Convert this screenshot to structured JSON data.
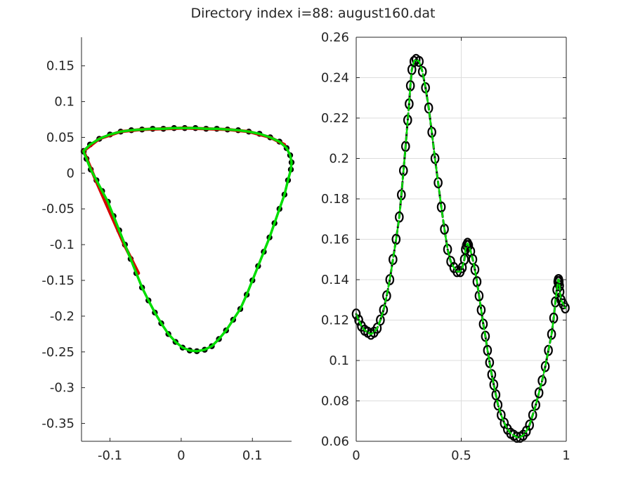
{
  "title": "Directory index i=88: august160.dat",
  "colors": {
    "axis": "#262626",
    "grid": "#dcdcdc",
    "markers": "#000000",
    "fit": "#00dd00",
    "reference": "#d40000"
  },
  "chart_data": [
    {
      "type": "line",
      "subplot": "left",
      "xlim": [
        -0.14,
        0.155
      ],
      "ylim": [
        -0.375,
        0.19
      ],
      "xticks": [
        -0.1,
        0,
        0.1
      ],
      "xtick_labels": [
        "-0.1",
        "0",
        "0.1"
      ],
      "yticks": [
        0.15,
        0.1,
        0.05,
        0,
        -0.05,
        -0.1,
        -0.15,
        -0.2,
        -0.25,
        -0.3,
        -0.35
      ],
      "ytick_labels": [
        "0.15",
        "0.1",
        "0.05",
        "0",
        "-0.05",
        "-0.1",
        "-0.15",
        "-0.2",
        "-0.25",
        "-0.3",
        "-0.35"
      ],
      "grid": false,
      "series": [
        {
          "style": "filled black circles",
          "x": [
            -0.137,
            -0.128,
            -0.115,
            -0.1,
            -0.085,
            -0.07,
            -0.055,
            -0.04,
            -0.025,
            -0.01,
            0.005,
            0.02,
            0.035,
            0.05,
            0.065,
            0.08,
            0.095,
            0.11,
            0.125,
            0.138,
            0.148,
            0.153,
            0.155,
            0.154,
            0.15,
            0.145,
            0.138,
            0.131,
            0.124,
            0.116,
            0.108,
            0.1,
            0.092,
            0.083,
            0.073,
            0.063,
            0.053,
            0.043,
            0.033,
            0.022,
            0.012,
            0.002,
            -0.008,
            -0.018,
            -0.028,
            -0.037,
            -0.046,
            -0.055,
            -0.063,
            -0.071,
            -0.079,
            -0.087,
            -0.095,
            -0.103,
            -0.111,
            -0.119,
            -0.127,
            -0.133,
            -0.137
          ],
          "y": [
            0.031,
            0.04,
            0.048,
            0.054,
            0.058,
            0.06,
            0.061,
            0.062,
            0.062,
            0.063,
            0.063,
            0.063,
            0.062,
            0.062,
            0.061,
            0.06,
            0.058,
            0.055,
            0.05,
            0.044,
            0.035,
            0.025,
            0.015,
            0.005,
            -0.01,
            -0.03,
            -0.05,
            -0.07,
            -0.09,
            -0.11,
            -0.13,
            -0.15,
            -0.17,
            -0.19,
            -0.205,
            -0.22,
            -0.232,
            -0.242,
            -0.247,
            -0.249,
            -0.248,
            -0.244,
            -0.236,
            -0.225,
            -0.21,
            -0.195,
            -0.178,
            -0.16,
            -0.14,
            -0.12,
            -0.1,
            -0.08,
            -0.06,
            -0.04,
            -0.025,
            -0.01,
            0.005,
            0.02,
            0.03
          ]
        },
        {
          "style": "red line",
          "x": [
            -0.137,
            -0.115,
            -0.085,
            -0.055,
            -0.025,
            0.005,
            0.035,
            0.065,
            0.095,
            0.125,
            0.145
          ],
          "y": [
            0.031,
            0.048,
            0.058,
            0.061,
            0.062,
            0.063,
            0.062,
            0.061,
            0.058,
            0.05,
            0.04
          ]
        },
        {
          "style": "red line",
          "x": [
            -0.137,
            -0.12,
            -0.1,
            -0.08,
            -0.06
          ],
          "y": [
            0.031,
            -0.01,
            -0.055,
            -0.1,
            -0.14
          ]
        },
        {
          "style": "green line",
          "x": [
            -0.137,
            -0.128,
            -0.115,
            -0.1,
            -0.085,
            -0.07,
            -0.055,
            -0.04,
            -0.025,
            -0.01,
            0.005,
            0.02,
            0.035,
            0.05,
            0.065,
            0.08,
            0.095,
            0.11,
            0.125,
            0.138,
            0.148,
            0.153,
            0.155,
            0.154,
            0.15,
            0.145,
            0.138,
            0.131,
            0.124,
            0.116,
            0.108,
            0.1,
            0.092,
            0.083,
            0.073,
            0.063,
            0.053,
            0.043,
            0.033,
            0.022,
            0.012,
            0.002,
            -0.008,
            -0.018,
            -0.028,
            -0.037,
            -0.046,
            -0.055,
            -0.063,
            -0.071,
            -0.079,
            -0.087,
            -0.095,
            -0.103,
            -0.111,
            -0.119,
            -0.127,
            -0.133,
            -0.137
          ],
          "y": [
            0.031,
            0.04,
            0.048,
            0.054,
            0.058,
            0.06,
            0.061,
            0.062,
            0.062,
            0.063,
            0.063,
            0.063,
            0.062,
            0.062,
            0.061,
            0.06,
            0.058,
            0.055,
            0.05,
            0.044,
            0.035,
            0.025,
            0.015,
            0.005,
            -0.01,
            -0.03,
            -0.05,
            -0.07,
            -0.09,
            -0.11,
            -0.13,
            -0.15,
            -0.17,
            -0.19,
            -0.205,
            -0.22,
            -0.232,
            -0.242,
            -0.247,
            -0.249,
            -0.248,
            -0.244,
            -0.236,
            -0.225,
            -0.21,
            -0.195,
            -0.178,
            -0.16,
            -0.14,
            -0.12,
            -0.1,
            -0.08,
            -0.06,
            -0.04,
            -0.025,
            -0.01,
            0.005,
            0.02,
            0.03
          ]
        }
      ]
    },
    {
      "type": "line",
      "subplot": "right",
      "xlim": [
        0,
        1
      ],
      "ylim": [
        0.06,
        0.26
      ],
      "xticks": [
        0,
        0.5,
        1
      ],
      "xtick_labels": [
        "0",
        "0.5",
        "1"
      ],
      "yticks": [
        0.26,
        0.24,
        0.22,
        0.2,
        0.18,
        0.16,
        0.14,
        0.12,
        0.1,
        0.08,
        0.06
      ],
      "ytick_labels": [
        "0.26",
        "0.24",
        "0.22",
        "0.2",
        "0.18",
        "0.16",
        "0.14",
        "0.12",
        "0.1",
        "0.08",
        "0.06"
      ],
      "grid": true,
      "series": [
        {
          "style": "open black circles",
          "x": [
            0,
            0.012,
            0.025,
            0.04,
            0.055,
            0.07,
            0.085,
            0.1,
            0.115,
            0.13,
            0.145,
            0.16,
            0.175,
            0.19,
            0.205,
            0.215,
            0.225,
            0.235,
            0.245,
            0.252,
            0.258,
            0.265,
            0.275,
            0.285,
            0.3,
            0.315,
            0.33,
            0.345,
            0.36,
            0.375,
            0.39,
            0.405,
            0.42,
            0.435,
            0.45,
            0.465,
            0.48,
            0.495,
            0.505,
            0.515,
            0.52,
            0.525,
            0.53,
            0.535,
            0.545,
            0.555,
            0.565,
            0.575,
            0.585,
            0.595,
            0.605,
            0.615,
            0.625,
            0.635,
            0.645,
            0.655,
            0.665,
            0.675,
            0.69,
            0.705,
            0.72,
            0.735,
            0.75,
            0.765,
            0.78,
            0.795,
            0.81,
            0.825,
            0.84,
            0.855,
            0.87,
            0.885,
            0.9,
            0.915,
            0.93,
            0.94,
            0.948,
            0.955,
            0.96,
            0.962,
            0.964,
            0.966,
            0.968,
            0.97,
            0.975,
            0.985,
            0.995
          ],
          "y": [
            0.123,
            0.12,
            0.117,
            0.115,
            0.114,
            0.113,
            0.114,
            0.116,
            0.12,
            0.125,
            0.132,
            0.14,
            0.15,
            0.16,
            0.171,
            0.182,
            0.194,
            0.206,
            0.219,
            0.227,
            0.236,
            0.244,
            0.248,
            0.249,
            0.248,
            0.243,
            0.235,
            0.225,
            0.213,
            0.2,
            0.188,
            0.176,
            0.165,
            0.155,
            0.149,
            0.146,
            0.144,
            0.144,
            0.146,
            0.15,
            0.155,
            0.157,
            0.158,
            0.157,
            0.154,
            0.15,
            0.145,
            0.139,
            0.132,
            0.125,
            0.118,
            0.112,
            0.105,
            0.099,
            0.093,
            0.088,
            0.083,
            0.078,
            0.073,
            0.069,
            0.066,
            0.064,
            0.063,
            0.062,
            0.062,
            0.063,
            0.065,
            0.068,
            0.073,
            0.078,
            0.084,
            0.09,
            0.097,
            0.105,
            0.113,
            0.121,
            0.129,
            0.135,
            0.139,
            0.14,
            0.14,
            0.139,
            0.137,
            0.134,
            0.13,
            0.128,
            0.126
          ]
        },
        {
          "style": "black dashed line",
          "x": [
            0,
            0.012,
            0.025,
            0.04,
            0.055,
            0.07,
            0.085,
            0.1,
            0.115,
            0.13,
            0.145,
            0.16,
            0.175,
            0.19,
            0.205,
            0.215,
            0.225,
            0.235,
            0.245,
            0.252,
            0.258,
            0.265,
            0.275,
            0.285,
            0.3,
            0.315,
            0.33,
            0.345,
            0.36,
            0.375,
            0.39,
            0.405,
            0.42,
            0.435,
            0.45,
            0.465,
            0.48,
            0.495,
            0.505,
            0.515,
            0.52,
            0.525,
            0.53,
            0.535,
            0.545,
            0.555,
            0.565,
            0.575,
            0.585,
            0.595,
            0.605,
            0.615,
            0.625,
            0.635,
            0.645,
            0.655,
            0.665,
            0.675,
            0.69,
            0.705,
            0.72,
            0.735,
            0.75,
            0.765,
            0.78,
            0.795,
            0.81,
            0.825,
            0.84,
            0.855,
            0.87,
            0.885,
            0.9,
            0.915,
            0.93,
            0.94,
            0.948,
            0.955,
            0.96,
            0.962,
            0.964,
            0.966,
            0.968,
            0.97,
            0.975,
            0.985,
            0.995
          ],
          "y": [
            0.123,
            0.12,
            0.117,
            0.115,
            0.114,
            0.113,
            0.114,
            0.116,
            0.12,
            0.125,
            0.132,
            0.14,
            0.15,
            0.16,
            0.171,
            0.182,
            0.194,
            0.206,
            0.219,
            0.227,
            0.236,
            0.244,
            0.248,
            0.249,
            0.248,
            0.243,
            0.235,
            0.225,
            0.213,
            0.2,
            0.188,
            0.176,
            0.165,
            0.155,
            0.149,
            0.146,
            0.144,
            0.144,
            0.146,
            0.15,
            0.155,
            0.157,
            0.158,
            0.157,
            0.154,
            0.15,
            0.145,
            0.139,
            0.132,
            0.125,
            0.118,
            0.112,
            0.105,
            0.099,
            0.093,
            0.088,
            0.083,
            0.078,
            0.073,
            0.069,
            0.066,
            0.064,
            0.063,
            0.062,
            0.062,
            0.063,
            0.065,
            0.068,
            0.073,
            0.078,
            0.084,
            0.09,
            0.097,
            0.105,
            0.113,
            0.121,
            0.129,
            0.135,
            0.139,
            0.14,
            0.14,
            0.139,
            0.137,
            0.134,
            0.13,
            0.128,
            0.126
          ]
        },
        {
          "style": "green dashed line",
          "x": [
            0,
            0.012,
            0.025,
            0.04,
            0.055,
            0.07,
            0.085,
            0.1,
            0.115,
            0.13,
            0.145,
            0.16,
            0.175,
            0.19,
            0.205,
            0.215,
            0.225,
            0.235,
            0.245,
            0.252,
            0.258,
            0.265,
            0.275,
            0.285,
            0.3,
            0.315,
            0.33,
            0.345,
            0.36,
            0.375,
            0.39,
            0.405,
            0.42,
            0.435,
            0.45,
            0.465,
            0.48,
            0.495,
            0.505,
            0.515,
            0.52,
            0.525,
            0.53,
            0.535,
            0.545,
            0.555,
            0.565,
            0.575,
            0.585,
            0.595,
            0.605,
            0.615,
            0.625,
            0.635,
            0.645,
            0.655,
            0.665,
            0.675,
            0.69,
            0.705,
            0.72,
            0.735,
            0.75,
            0.765,
            0.78,
            0.795,
            0.81,
            0.825,
            0.84,
            0.855,
            0.87,
            0.885,
            0.9,
            0.915,
            0.93,
            0.94,
            0.948,
            0.955,
            0.96,
            0.962,
            0.964,
            0.966,
            0.968,
            0.97,
            0.975,
            0.985,
            0.995
          ],
          "y": [
            0.123,
            0.12,
            0.117,
            0.115,
            0.114,
            0.113,
            0.114,
            0.116,
            0.12,
            0.125,
            0.132,
            0.14,
            0.15,
            0.16,
            0.171,
            0.182,
            0.194,
            0.206,
            0.219,
            0.227,
            0.236,
            0.244,
            0.248,
            0.249,
            0.248,
            0.243,
            0.235,
            0.225,
            0.213,
            0.2,
            0.188,
            0.176,
            0.165,
            0.155,
            0.149,
            0.146,
            0.144,
            0.144,
            0.146,
            0.15,
            0.155,
            0.157,
            0.158,
            0.157,
            0.154,
            0.15,
            0.145,
            0.139,
            0.132,
            0.125,
            0.118,
            0.112,
            0.105,
            0.099,
            0.093,
            0.088,
            0.083,
            0.078,
            0.073,
            0.069,
            0.066,
            0.064,
            0.063,
            0.062,
            0.062,
            0.063,
            0.065,
            0.068,
            0.073,
            0.078,
            0.084,
            0.09,
            0.097,
            0.105,
            0.113,
            0.121,
            0.129,
            0.135,
            0.139,
            0.14,
            0.14,
            0.139,
            0.137,
            0.134,
            0.13,
            0.128,
            0.126
          ]
        }
      ]
    }
  ]
}
